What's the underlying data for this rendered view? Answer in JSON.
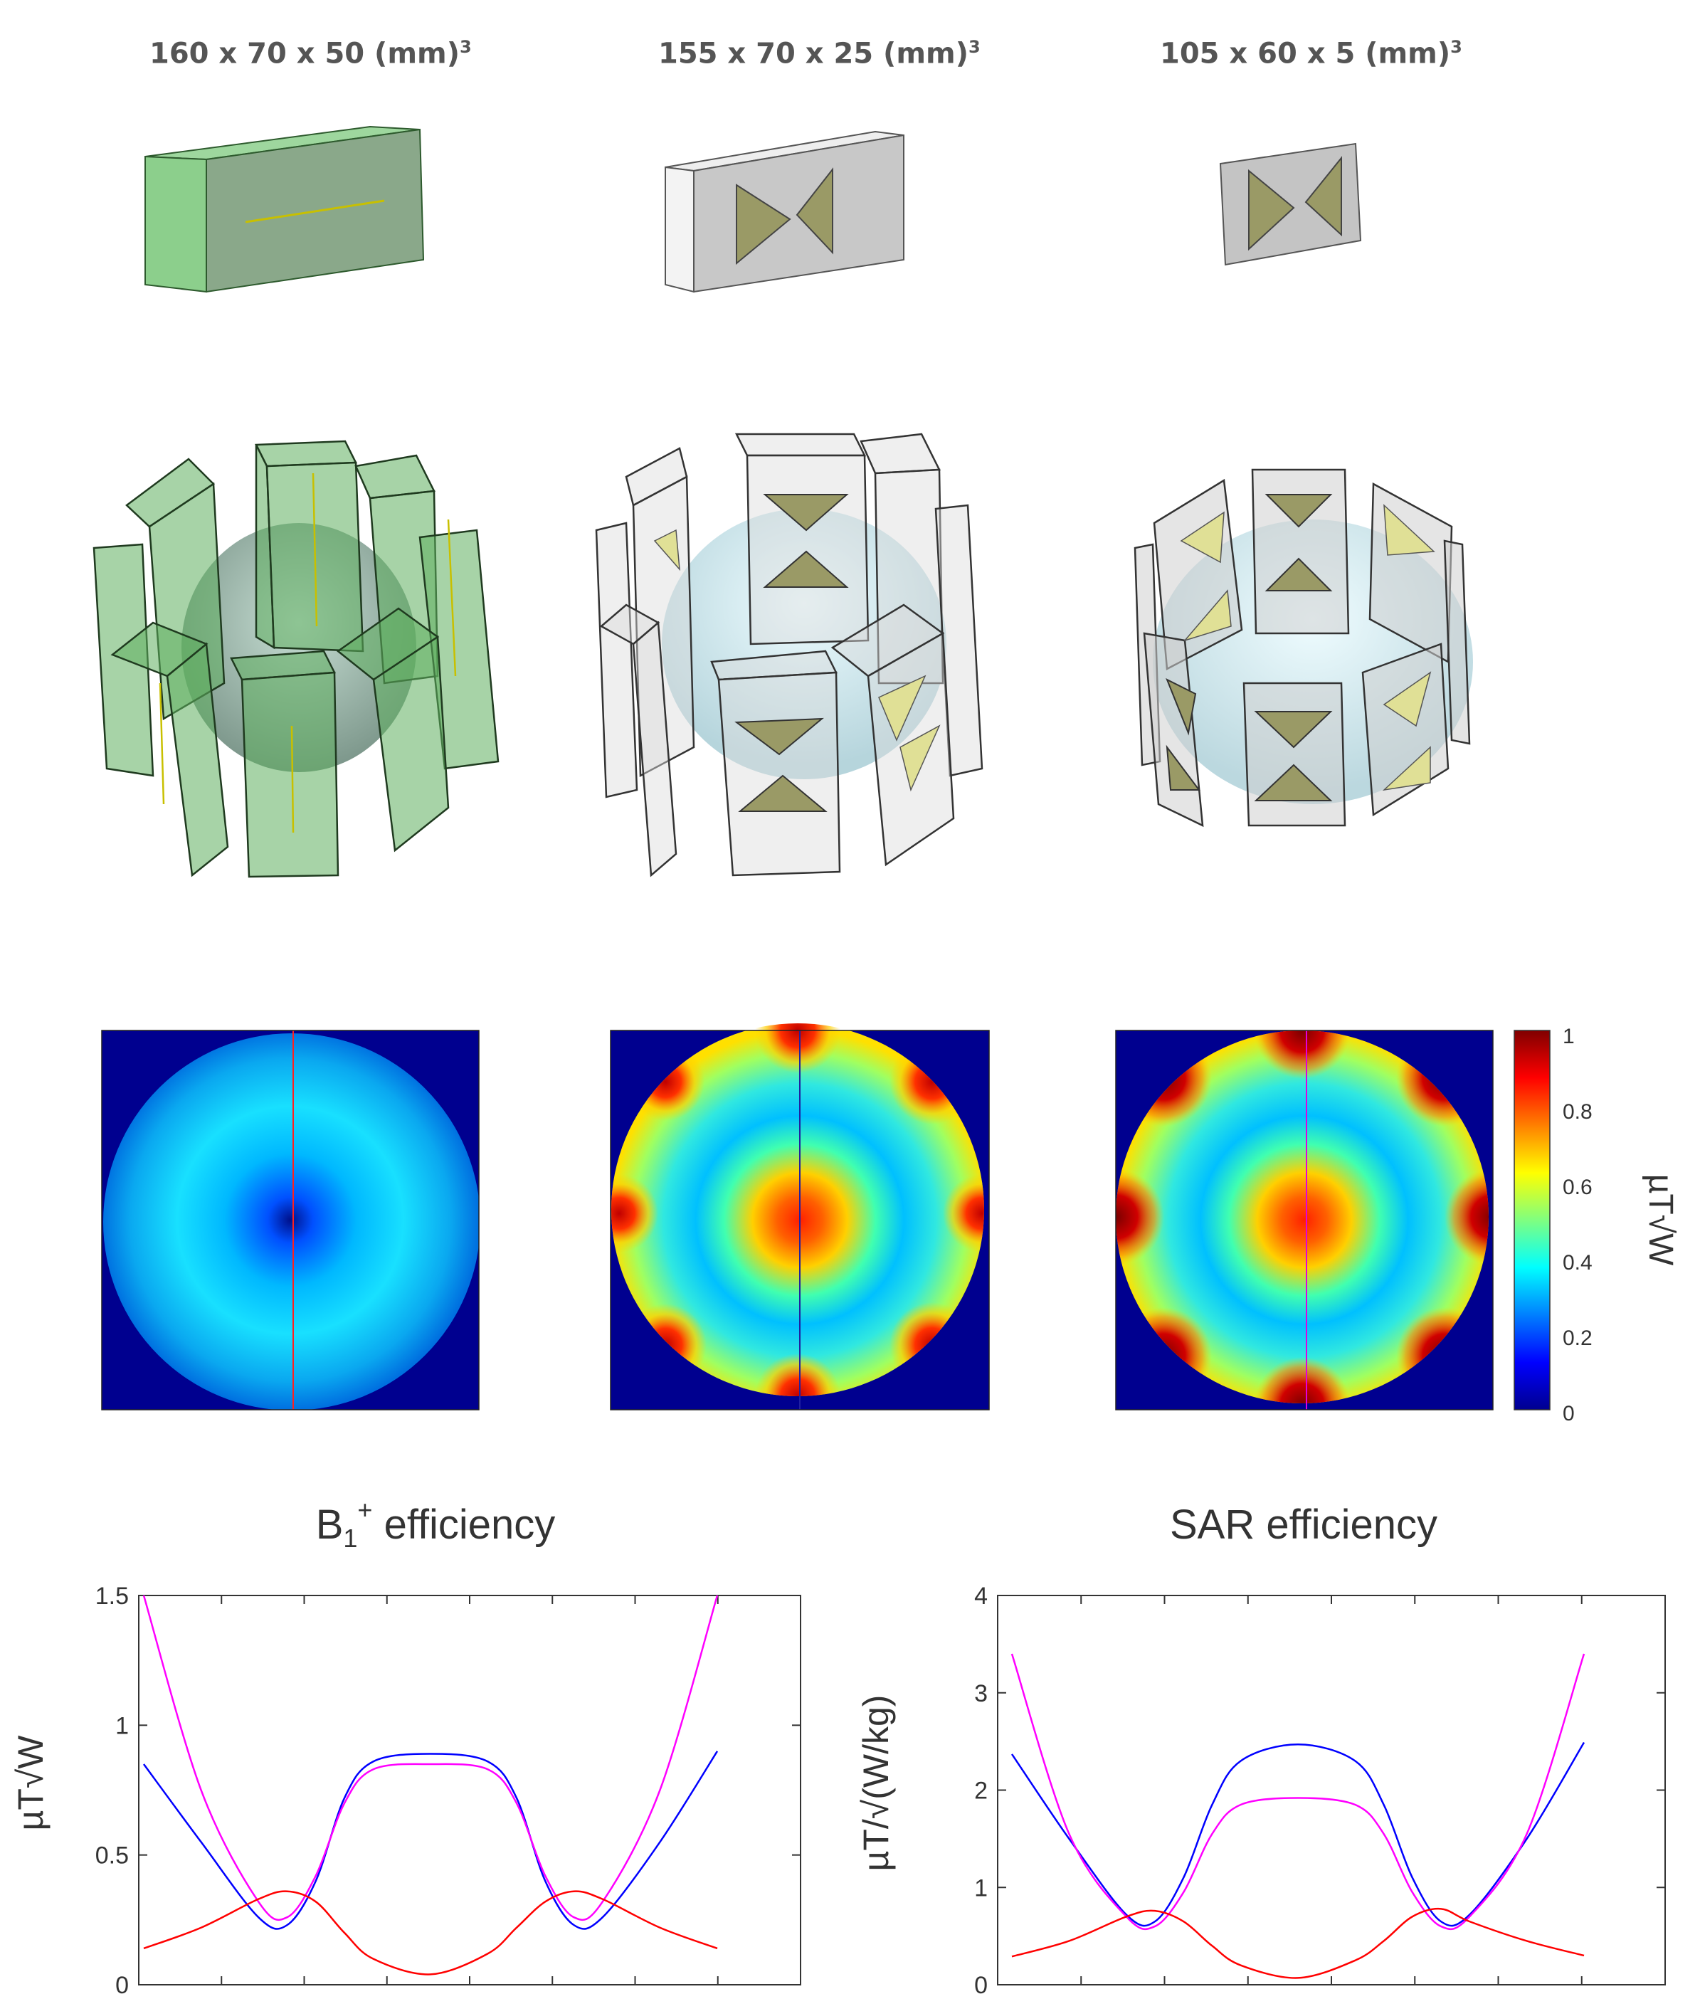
{
  "figure": {
    "columns": [
      {
        "label": "160 x 70 x 50 (mm)",
        "sup": "3",
        "color": "#7dc47d"
      },
      {
        "label": "155 x 70 x 25 (mm)",
        "sup": "3",
        "color": "#c8c8c8"
      },
      {
        "label": "105 x 60 x 5 (mm)",
        "sup": "3",
        "color": "#c8c8c8"
      }
    ],
    "colorbar": {
      "ticks": [
        "1",
        "0.8",
        "0.6",
        "0.4",
        "0.2",
        "0"
      ],
      "unit": "µT√W"
    },
    "plot_titles": {
      "left_main": "B",
      "left_sub": "1",
      "left_sup": "+",
      "left_rest": " efficiency",
      "right": "SAR efficiency"
    }
  },
  "chart_data": [
    {
      "type": "line",
      "title": "B1+ efficiency",
      "ylabel": "µT√W",
      "ylim": [
        0,
        1.5
      ],
      "yticks": [
        "0",
        "0.5",
        "1",
        "1.5"
      ],
      "x": [
        0,
        0.1,
        0.2,
        0.25,
        0.3,
        0.35,
        0.4,
        0.5,
        0.6,
        0.65,
        0.7,
        0.75,
        0.8,
        0.9,
        1.0
      ],
      "series": [
        {
          "color": "#0000ff",
          "values": [
            0.85,
            0.55,
            0.26,
            0.23,
            0.4,
            0.72,
            0.86,
            0.89,
            0.86,
            0.72,
            0.4,
            0.23,
            0.26,
            0.55,
            0.9
          ]
        },
        {
          "color": "#ff00ff",
          "values": [
            1.5,
            0.75,
            0.32,
            0.26,
            0.42,
            0.7,
            0.83,
            0.85,
            0.83,
            0.7,
            0.42,
            0.26,
            0.32,
            0.75,
            1.5
          ]
        },
        {
          "color": "#ff0000",
          "values": [
            0.14,
            0.22,
            0.33,
            0.36,
            0.32,
            0.2,
            0.1,
            0.04,
            0.12,
            0.22,
            0.32,
            0.36,
            0.33,
            0.22,
            0.14
          ]
        }
      ]
    },
    {
      "type": "line",
      "title": "SAR efficiency",
      "ylabel": "µT/√(W/kg)",
      "ylim": [
        0,
        4
      ],
      "yticks": [
        "0",
        "1",
        "2",
        "3",
        "4"
      ],
      "x": [
        0,
        0.1,
        0.2,
        0.25,
        0.3,
        0.35,
        0.4,
        0.5,
        0.6,
        0.65,
        0.7,
        0.75,
        0.8,
        0.9,
        1.0
      ],
      "series": [
        {
          "color": "#0000ff",
          "values": [
            2.37,
            1.5,
            0.72,
            0.65,
            1.1,
            1.85,
            2.3,
            2.47,
            2.3,
            1.85,
            1.1,
            0.65,
            0.72,
            1.5,
            2.49
          ]
        },
        {
          "color": "#ff00ff",
          "values": [
            3.4,
            1.55,
            0.7,
            0.6,
            0.95,
            1.55,
            1.85,
            1.92,
            1.85,
            1.55,
            0.95,
            0.6,
            0.7,
            1.55,
            3.4
          ]
        },
        {
          "color": "#ff0000",
          "values": [
            0.29,
            0.45,
            0.7,
            0.76,
            0.65,
            0.4,
            0.2,
            0.07,
            0.25,
            0.45,
            0.7,
            0.78,
            0.65,
            0.45,
            0.3
          ]
        }
      ]
    }
  ]
}
